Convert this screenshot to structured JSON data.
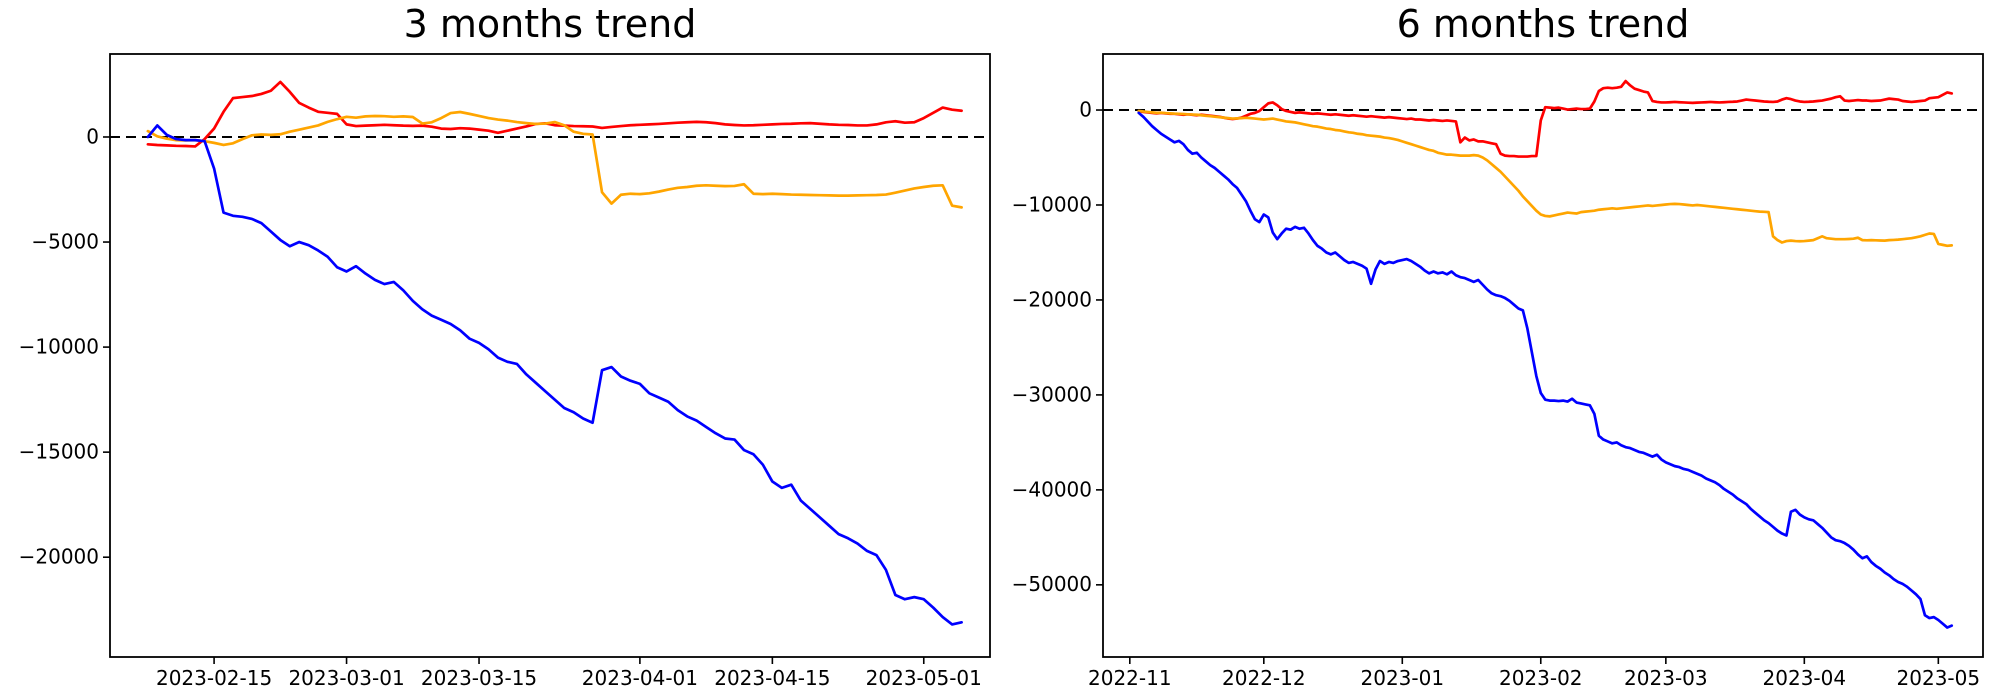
{
  "figure": {
    "background": "#ffffff",
    "text_color": "#000000",
    "axis_color": "#000000"
  },
  "chart_data": [
    {
      "type": "line",
      "title": "3 months trend",
      "grid": false,
      "legend": null,
      "zero_line": {
        "style": "dashed",
        "color": "#000000",
        "value": 0
      },
      "x_axis": {
        "start": "2023-02-08",
        "freq": "daily",
        "lim": [
          "2023-02-04",
          "2023-05-08"
        ],
        "ticks": [
          {
            "date": "2023-02-15",
            "label": "2023-02-15"
          },
          {
            "date": "2023-03-01",
            "label": "2023-03-01"
          },
          {
            "date": "2023-03-15",
            "label": "2023-03-15"
          },
          {
            "date": "2023-04-01",
            "label": "2023-04-01"
          },
          {
            "date": "2023-04-15",
            "label": "2023-04-15"
          },
          {
            "date": "2023-05-01",
            "label": "2023-05-01"
          }
        ]
      },
      "y_axis": {
        "lim": [
          -24750,
          3950
        ],
        "ticks": [
          {
            "value": 0,
            "label": "0"
          },
          {
            "value": -5000,
            "label": "−5000"
          },
          {
            "value": -10000,
            "label": "−10000"
          },
          {
            "value": -15000,
            "label": "−15000"
          },
          {
            "value": -20000,
            "label": "−20000"
          }
        ]
      },
      "series": [
        {
          "name": "red-line",
          "color": "#ff0000",
          "values": [
            -350,
            -380,
            -400,
            -420,
            -430,
            -450,
            -100,
            400,
            1200,
            1850,
            1900,
            1950,
            2050,
            2200,
            2620,
            2150,
            1620,
            1400,
            1200,
            1150,
            1100,
            600,
            520,
            540,
            560,
            580,
            560,
            540,
            530,
            540,
            490,
            400,
            380,
            420,
            400,
            350,
            300,
            200,
            300,
            400,
            500,
            620,
            650,
            560,
            540,
            520,
            510,
            500,
            430,
            480,
            520,
            560,
            580,
            600,
            620,
            650,
            680,
            700,
            720,
            700,
            660,
            600,
            570,
            550,
            560,
            580,
            600,
            620,
            630,
            650,
            660,
            630,
            600,
            580,
            570,
            550,
            550,
            600,
            700,
            750,
            680,
            700,
            900,
            1150,
            1400,
            1300,
            1250
          ]
        },
        {
          "name": "orange-line",
          "color": "#ffa500",
          "values": [
            280,
            30,
            -80,
            -150,
            -160,
            -150,
            -200,
            -280,
            -380,
            -300,
            -100,
            80,
            120,
            100,
            130,
            250,
            350,
            450,
            550,
            720,
            850,
            960,
            920,
            980,
            1000,
            990,
            960,
            980,
            950,
            640,
            700,
            900,
            1140,
            1190,
            1100,
            1000,
            900,
            830,
            780,
            710,
            660,
            620,
            640,
            710,
            560,
            250,
            150,
            120,
            -2630,
            -3170,
            -2750,
            -2700,
            -2720,
            -2680,
            -2600,
            -2500,
            -2420,
            -2380,
            -2320,
            -2300,
            -2320,
            -2340,
            -2330,
            -2250,
            -2700,
            -2720,
            -2700,
            -2720,
            -2740,
            -2750,
            -2760,
            -2770,
            -2780,
            -2790,
            -2790,
            -2780,
            -2770,
            -2760,
            -2740,
            -2650,
            -2550,
            -2450,
            -2380,
            -2320,
            -2300,
            -3270,
            -3350
          ]
        },
        {
          "name": "blue-line",
          "color": "#0000ff",
          "values": [
            0,
            550,
            100,
            -100,
            -150,
            -150,
            -200,
            -1500,
            -3600,
            -3750,
            -3800,
            -3900,
            -4100,
            -4500,
            -4900,
            -5200,
            -5000,
            -5150,
            -5400,
            -5700,
            -6200,
            -6400,
            -6150,
            -6500,
            -6800,
            -7000,
            -6900,
            -7300,
            -7800,
            -8200,
            -8500,
            -8700,
            -8900,
            -9200,
            -9600,
            -9800,
            -10100,
            -10500,
            -10700,
            -10800,
            -11300,
            -11700,
            -12100,
            -12500,
            -12900,
            -13100,
            -13400,
            -13600,
            -11100,
            -10950,
            -11400,
            -11600,
            -11750,
            -12200,
            -12400,
            -12600,
            -13000,
            -13300,
            -13500,
            -13800,
            -14100,
            -14350,
            -14400,
            -14900,
            -15100,
            -15600,
            -16400,
            -16700,
            -16550,
            -17300,
            -17700,
            -18100,
            -18500,
            -18900,
            -19100,
            -19350,
            -19700,
            -19900,
            -20600,
            -21800,
            -22000,
            -21900,
            -22000,
            -22400,
            -22850,
            -23200,
            -23100
          ]
        }
      ]
    },
    {
      "type": "line",
      "title": "6 months trend",
      "grid": false,
      "legend": null,
      "zero_line": {
        "style": "dashed",
        "color": "#000000",
        "value": 0
      },
      "x_axis": {
        "start": "2022-11-03",
        "freq": "daily",
        "lim": [
          "2022-10-26",
          "2023-05-11"
        ],
        "ticks": [
          {
            "date": "2022-11-01",
            "label": "2022-11"
          },
          {
            "date": "2022-12-01",
            "label": "2022-12"
          },
          {
            "date": "2023-01-01",
            "label": "2023-01"
          },
          {
            "date": "2023-02-01",
            "label": "2023-02"
          },
          {
            "date": "2023-03-01",
            "label": "2023-03"
          },
          {
            "date": "2023-04-01",
            "label": "2023-04"
          },
          {
            "date": "2023-05-01",
            "label": "2023-05"
          }
        ]
      },
      "y_axis": {
        "lim": [
          -57600,
          5900
        ],
        "ticks": [
          {
            "value": 0,
            "label": "0"
          },
          {
            "value": -10000,
            "label": "−10000"
          },
          {
            "value": -20000,
            "label": "−20000"
          },
          {
            "value": -30000,
            "label": "−30000"
          },
          {
            "value": -40000,
            "label": "−40000"
          },
          {
            "value": -50000,
            "label": "−50000"
          }
        ]
      },
      "series": [
        {
          "name": "red-line",
          "color": "#ff0000",
          "values": [
            -150,
            -200,
            -250,
            -300,
            -350,
            -300,
            -350,
            -400,
            -400,
            -450,
            -500,
            -450,
            -500,
            -550,
            -500,
            -550,
            -600,
            -650,
            -700,
            -800,
            -900,
            -950,
            -900,
            -800,
            -600,
            -400,
            -300,
            -100,
            300,
            700,
            800,
            500,
            100,
            -100,
            -200,
            -300,
            -250,
            -300,
            -350,
            -400,
            -350,
            -400,
            -450,
            -500,
            -450,
            -500,
            -550,
            -600,
            -550,
            -600,
            -650,
            -700,
            -650,
            -700,
            -750,
            -800,
            -750,
            -800,
            -850,
            -900,
            -950,
            -900,
            -1000,
            -1000,
            -1050,
            -1100,
            -1050,
            -1100,
            -1150,
            -1100,
            -1150,
            -1200,
            -3400,
            -2900,
            -3200,
            -3100,
            -3300,
            -3300,
            -3400,
            -3500,
            -3600,
            -4600,
            -4800,
            -4850,
            -4850,
            -4900,
            -4900,
            -4900,
            -4850,
            -4850,
            -1100,
            300,
            250,
            200,
            250,
            150,
            50,
            100,
            150,
            100,
            100,
            150,
            900,
            2000,
            2300,
            2350,
            2300,
            2350,
            2450,
            3050,
            2600,
            2250,
            2100,
            1950,
            1850,
            950,
            850,
            800,
            800,
            820,
            850,
            820,
            800,
            770,
            750,
            780,
            800,
            820,
            850,
            820,
            800,
            820,
            850,
            870,
            900,
            1000,
            1100,
            1050,
            1000,
            950,
            900,
            870,
            850,
            900,
            1100,
            1250,
            1150,
            1000,
            900,
            850,
            870,
            900,
            950,
            1000,
            1100,
            1200,
            1350,
            1450,
            1000,
            950,
            1000,
            1050,
            1000,
            1000,
            950,
            980,
            1000,
            1100,
            1200,
            1150,
            1100,
            950,
            900,
            850,
            900,
            950,
            1000,
            1250,
            1300,
            1350,
            1600,
            1850,
            1750
          ]
        },
        {
          "name": "orange-line",
          "color": "#ffa500",
          "values": [
            -100,
            -150,
            -200,
            -250,
            -300,
            -280,
            -320,
            -350,
            -380,
            -400,
            -420,
            -450,
            -480,
            -500,
            -550,
            -600,
            -650,
            -700,
            -750,
            -800,
            -850,
            -900,
            -880,
            -850,
            -820,
            -850,
            -900,
            -950,
            -1000,
            -950,
            -900,
            -1000,
            -1100,
            -1200,
            -1250,
            -1300,
            -1400,
            -1500,
            -1600,
            -1700,
            -1750,
            -1850,
            -1950,
            -2000,
            -2100,
            -2150,
            -2250,
            -2350,
            -2400,
            -2500,
            -2550,
            -2650,
            -2700,
            -2750,
            -2800,
            -2900,
            -2950,
            -3050,
            -3150,
            -3300,
            -3450,
            -3600,
            -3750,
            -3900,
            -4050,
            -4200,
            -4300,
            -4500,
            -4600,
            -4700,
            -4700,
            -4750,
            -4800,
            -4800,
            -4800,
            -4750,
            -4800,
            -5000,
            -5300,
            -5700,
            -6100,
            -6500,
            -7000,
            -7500,
            -8000,
            -8500,
            -9100,
            -9600,
            -10100,
            -10600,
            -11000,
            -11150,
            -11200,
            -11100,
            -11000,
            -10900,
            -10800,
            -10850,
            -10900,
            -10750,
            -10700,
            -10650,
            -10600,
            -10500,
            -10450,
            -10400,
            -10350,
            -10400,
            -10350,
            -10300,
            -10250,
            -10200,
            -10150,
            -10100,
            -10050,
            -10100,
            -10050,
            -10000,
            -9950,
            -9900,
            -9880,
            -9900,
            -9950,
            -10000,
            -10050,
            -10000,
            -10050,
            -10100,
            -10150,
            -10200,
            -10250,
            -10300,
            -10350,
            -10400,
            -10450,
            -10500,
            -10550,
            -10600,
            -10650,
            -10700,
            -10720,
            -10750,
            -13300,
            -13700,
            -13950,
            -13800,
            -13750,
            -13800,
            -13820,
            -13800,
            -13750,
            -13700,
            -13500,
            -13300,
            -13500,
            -13550,
            -13600,
            -13600,
            -13600,
            -13580,
            -13550,
            -13450,
            -13700,
            -13720,
            -13700,
            -13720,
            -13740,
            -13750,
            -13700,
            -13680,
            -13650,
            -13600,
            -13550,
            -13500,
            -13400,
            -13300,
            -13150,
            -13000,
            -13050,
            -14100,
            -14200,
            -14300,
            -14250
          ]
        },
        {
          "name": "blue-line",
          "color": "#0000ff",
          "values": [
            -300,
            -700,
            -1200,
            -1700,
            -2100,
            -2500,
            -2800,
            -3100,
            -3400,
            -3250,
            -3600,
            -4200,
            -4600,
            -4500,
            -5000,
            -5400,
            -5800,
            -6100,
            -6500,
            -6900,
            -7300,
            -7800,
            -8200,
            -8900,
            -9600,
            -10600,
            -11500,
            -11800,
            -11000,
            -11300,
            -12900,
            -13600,
            -13000,
            -12500,
            -12600,
            -12300,
            -12500,
            -12400,
            -13000,
            -13700,
            -14300,
            -14600,
            -15000,
            -15200,
            -15000,
            -15400,
            -15800,
            -16100,
            -16000,
            -16200,
            -16400,
            -16700,
            -18300,
            -16800,
            -15900,
            -16200,
            -16000,
            -16100,
            -15900,
            -15800,
            -15700,
            -15900,
            -16200,
            -16500,
            -16900,
            -17200,
            -17000,
            -17200,
            -17100,
            -17300,
            -17000,
            -17400,
            -17600,
            -17700,
            -17900,
            -18100,
            -17900,
            -18400,
            -18900,
            -19300,
            -19500,
            -19600,
            -19800,
            -20100,
            -20500,
            -20900,
            -21100,
            -23000,
            -25500,
            -28000,
            -29800,
            -30500,
            -30600,
            -30600,
            -30650,
            -30600,
            -30700,
            -30400,
            -30800,
            -30900,
            -31000,
            -31100,
            -32000,
            -34300,
            -34700,
            -34900,
            -35100,
            -35000,
            -35300,
            -35500,
            -35600,
            -35800,
            -36000,
            -36100,
            -36300,
            -36500,
            -36300,
            -36800,
            -37100,
            -37300,
            -37500,
            -37600,
            -37800,
            -37900,
            -38100,
            -38300,
            -38500,
            -38800,
            -39000,
            -39200,
            -39500,
            -39900,
            -40200,
            -40500,
            -40900,
            -41200,
            -41500,
            -42000,
            -42400,
            -42800,
            -43200,
            -43500,
            -43900,
            -44300,
            -44600,
            -44800,
            -42300,
            -42100,
            -42600,
            -42900,
            -43100,
            -43200,
            -43600,
            -44000,
            -44500,
            -45000,
            -45300,
            -45400,
            -45600,
            -45900,
            -46300,
            -46800,
            -47200,
            -47000,
            -47600,
            -48000,
            -48300,
            -48700,
            -49000,
            -49400,
            -49700,
            -49900,
            -50200,
            -50600,
            -51000,
            -51500,
            -53200,
            -53500,
            -53400,
            -53700,
            -54100,
            -54500,
            -54300
          ]
        }
      ]
    }
  ]
}
